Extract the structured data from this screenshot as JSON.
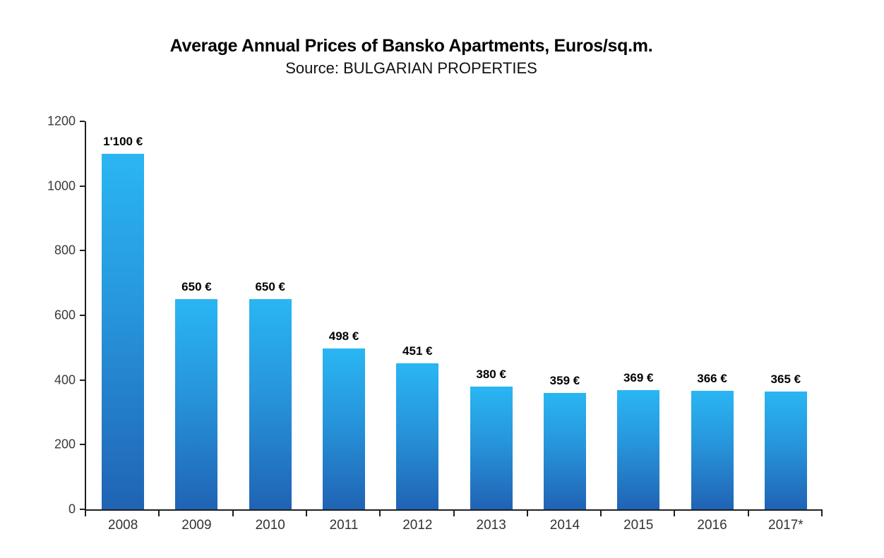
{
  "header": {
    "title": "Average Annual Prices of Bansko Apartments, Euros/sq.m.",
    "subtitle": "Source: BULGARIAN PROPERTIES"
  },
  "chart_data": {
    "type": "bar",
    "title": "Average Annual Prices of Bansko Apartments, Euros/sq.m.",
    "subtitle": "Source: BULGARIAN PROPERTIES",
    "categories": [
      "2008",
      "2009",
      "2010",
      "2011",
      "2012",
      "2013",
      "2014",
      "2015",
      "2016",
      "2017*"
    ],
    "values": [
      1100,
      650,
      650,
      498,
      451,
      380,
      359,
      369,
      366,
      365
    ],
    "value_labels": [
      "1'100 €",
      "650 €",
      "650 €",
      "498 €",
      "451 €",
      "380 €",
      "359 €",
      "369 €",
      "366 €",
      "365 €"
    ],
    "xlabel": "",
    "ylabel": "",
    "ylim": [
      0,
      1200
    ],
    "ytick_step": 200,
    "ytick_labels": [
      "0",
      "200",
      "400",
      "600",
      "800",
      "1000",
      "1200"
    ],
    "grid": false,
    "legend": false,
    "colors": {
      "bar_gradient_top": "#2AB6F3",
      "bar_gradient_mid": "#2795DB",
      "bar_gradient_bottom": "#2063B4",
      "axis_line": "#1f1f1f",
      "tick_text": "#3a3a3a",
      "value_label_text": "#000000",
      "background": "#ffffff"
    }
  }
}
